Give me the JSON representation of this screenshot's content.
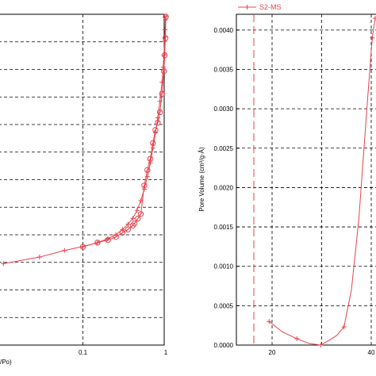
{
  "chart_data": [
    {
      "panel": "left",
      "type": "line",
      "title": "",
      "xlabel": "/Po)",
      "ylabel": "",
      "x_scale": "log",
      "xlim": [
        0.01,
        1
      ],
      "x_ticks": [
        {
          "value": 0.1,
          "label": "0.1"
        },
        {
          "value": 1,
          "label": "1"
        }
      ],
      "grid": true,
      "colors": {
        "series": "#e8424b"
      },
      "series": [
        {
          "name": "",
          "marker": "plus",
          "x": [
            0.011,
            0.03,
            0.06,
            0.1,
            0.15,
            0.2,
            0.25,
            0.3,
            0.35,
            0.4,
            0.45,
            0.5,
            0.55,
            0.6,
            0.65,
            0.7,
            0.75,
            0.8,
            0.85,
            0.9,
            0.93,
            0.95,
            0.97,
            0.98,
            0.99,
            1.0
          ],
          "y_pct": [
            24.8,
            26.8,
            28.8,
            30.0,
            31.2,
            32.4,
            33.6,
            35.2,
            36.8,
            38.6,
            41.0,
            44.0,
            47.5,
            51.3,
            55.5,
            60.0,
            64.6,
            69.2,
            74.2,
            80.0,
            84.6,
            88.3,
            92.5,
            96.0,
            99.0,
            100.0
          ]
        },
        {
          "name": "",
          "marker": "circle",
          "x": [
            1.0,
            0.99,
            0.97,
            0.95,
            0.9,
            0.85,
            0.8,
            0.75,
            0.7,
            0.65,
            0.6,
            0.55,
            0.5,
            0.46,
            0.42,
            0.4,
            0.35,
            0.3,
            0.25,
            0.2,
            0.15,
            0.1
          ],
          "y_pct": [
            100.0,
            93.5,
            88.3,
            83.4,
            76.5,
            70.9,
            67.7,
            65.5,
            61.5,
            56.7,
            53.3,
            48.6,
            39.9,
            38.5,
            37.0,
            36.4,
            35.2,
            34.2,
            32.9,
            32.0,
            31.2,
            29.9
          ]
        }
      ]
    },
    {
      "panel": "right",
      "type": "line",
      "title": "",
      "xlabel": "",
      "ylabel": "Pore Volume (cm³/g·Å)",
      "ylim": [
        0,
        0.0042
      ],
      "y_ticks": [
        "0.0000",
        "0.0005",
        "0.0010",
        "0.0015",
        "0.0020",
        "0.0025",
        "0.0030",
        "0.0035",
        "0.0040"
      ],
      "x_ticks": [
        {
          "value": 20,
          "label": "20"
        },
        {
          "value": 40,
          "label": "40"
        }
      ],
      "grid": true,
      "legend": {
        "placement": "top-left",
        "entries": [
          "S2-MS"
        ]
      },
      "colors": {
        "series": "#e8424b"
      },
      "series": [
        {
          "name": "S2-MS",
          "marker": "plus",
          "x": [
            19.4,
            22.0,
            25.0,
            27.5,
            29.8,
            31.5,
            33.0,
            34.5,
            36.0,
            37.5,
            39.0,
            40.2,
            40.8
          ],
          "y": [
            0.0003,
            0.00017,
            8e-05,
            2e-05,
            0.0,
            6e-05,
            0.00012,
            0.00023,
            0.0007,
            0.0016,
            0.0029,
            0.0039,
            0.00415
          ]
        }
      ],
      "reference_line": {
        "x": 15.5,
        "style": "dashed"
      }
    }
  ]
}
